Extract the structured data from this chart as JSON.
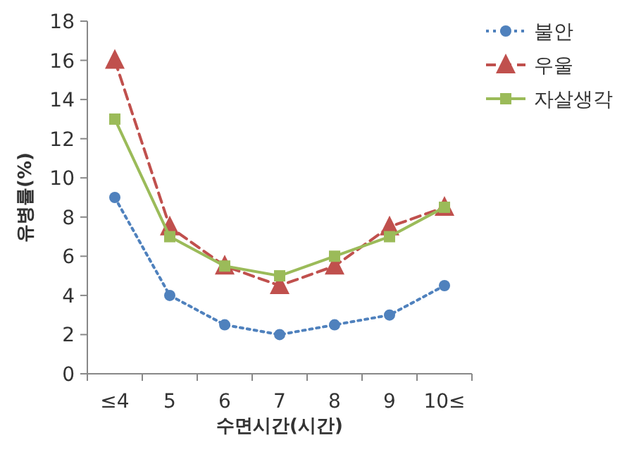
{
  "chart_data": {
    "type": "line",
    "xlabel": "수면시간(시간)",
    "ylabel": "유병률(%)",
    "categories": [
      "≤4",
      "5",
      "6",
      "7",
      "8",
      "9",
      "10≤"
    ],
    "ylim": [
      0,
      18
    ],
    "yticks": [
      0,
      2,
      4,
      6,
      8,
      10,
      12,
      14,
      16,
      18
    ],
    "grid": false,
    "legend": "top right",
    "series": [
      {
        "name": "불안",
        "color": "#4f81bd",
        "marker": "circle",
        "line_style": "dotted",
        "values": [
          9,
          4,
          2.5,
          2,
          2.5,
          3,
          4.5
        ]
      },
      {
        "name": "우울",
        "color": "#c0504d",
        "marker": "triangle",
        "line_style": "dashed",
        "values": [
          16,
          7.5,
          5.5,
          4.5,
          5.5,
          7.5,
          8.5
        ]
      },
      {
        "name": "자살생각",
        "color": "#9bbb59",
        "marker": "square",
        "line_style": "solid",
        "values": [
          13,
          7,
          5.5,
          5,
          6,
          7,
          8.5
        ]
      }
    ]
  }
}
